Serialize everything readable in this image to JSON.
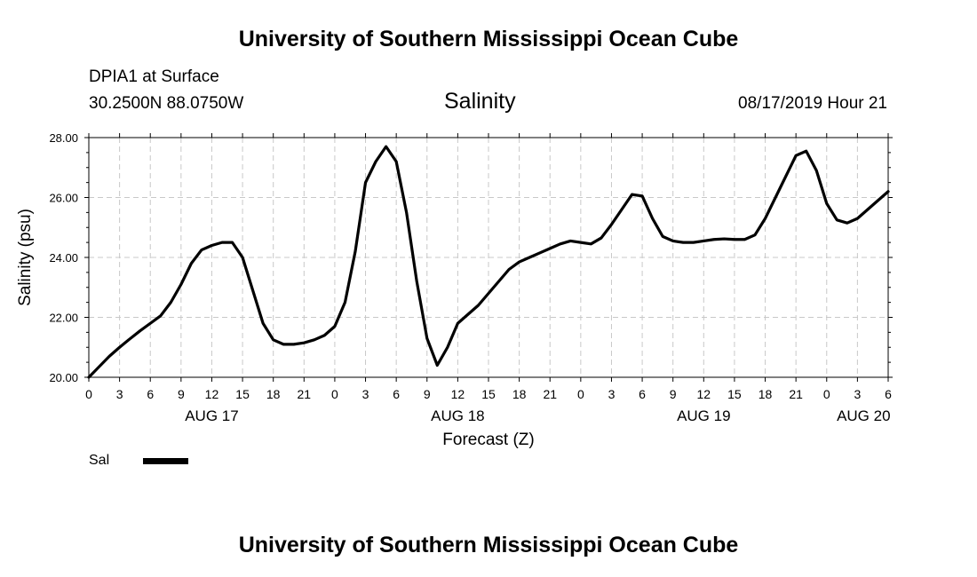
{
  "header": {
    "title": "University of Southern Mississippi Ocean Cube",
    "station_name": "DPIA1 at Surface",
    "station_coords": "30.2500N 88.0750W",
    "chart_title": "Salinity",
    "run_time": "08/17/2019 Hour 21"
  },
  "footer": {
    "title": "University of Southern Mississippi Ocean Cube"
  },
  "legend": {
    "label": "Sal"
  },
  "colors": {
    "line": "#000000",
    "grid": "#c8c8c8",
    "background": "#ffffff"
  },
  "chart_data": {
    "type": "line",
    "title": "Salinity",
    "xlabel": "Forecast (Z)",
    "ylabel": "Salinity (psu)",
    "x_unit": "hours since AUG 17 00Z",
    "xlim": [
      0,
      78
    ],
    "ylim": [
      20,
      28
    ],
    "grid": true,
    "x_ticks": [
      0,
      3,
      6,
      9,
      12,
      15,
      18,
      21,
      24,
      27,
      30,
      33,
      36,
      39,
      42,
      45,
      48,
      51,
      54,
      57,
      60,
      63,
      66,
      69,
      72,
      75,
      78
    ],
    "x_tick_labels": [
      "0",
      "3",
      "6",
      "9",
      "12",
      "15",
      "18",
      "21",
      "0",
      "3",
      "6",
      "9",
      "12",
      "15",
      "18",
      "21",
      "0",
      "3",
      "6",
      "9",
      "12",
      "15",
      "18",
      "21",
      "0",
      "3",
      "6"
    ],
    "y_ticks": [
      20,
      22,
      24,
      26,
      28
    ],
    "y_tick_labels": [
      "20.00",
      "22.00",
      "24.00",
      "26.00",
      "28.00"
    ],
    "day_labels": [
      {
        "label": "AUG 17",
        "x": 12
      },
      {
        "label": "AUG 18",
        "x": 36
      },
      {
        "label": "AUG 19",
        "x": 60
      },
      {
        "label": "AUG 20",
        "x": 75.6
      }
    ],
    "series": [
      {
        "name": "Sal",
        "x": [
          0,
          1,
          2,
          3,
          4,
          5,
          6,
          7,
          8,
          9,
          10,
          11,
          12,
          13,
          14,
          15,
          16,
          17,
          18,
          19,
          20,
          21,
          22,
          23,
          24,
          25,
          26,
          27,
          28,
          29,
          30,
          31,
          32,
          33,
          34,
          35,
          36,
          37,
          38,
          39,
          40,
          41,
          42,
          43,
          44,
          45,
          46,
          47,
          48,
          49,
          50,
          51,
          52,
          53,
          54,
          55,
          56,
          57,
          58,
          59,
          60,
          61,
          62,
          63,
          64,
          65,
          66,
          67,
          68,
          69,
          70,
          71,
          72,
          73,
          74,
          75,
          76,
          77,
          78
        ],
        "values": [
          20.0,
          20.35,
          20.7,
          21.0,
          21.28,
          21.55,
          21.8,
          22.05,
          22.5,
          23.1,
          23.8,
          24.25,
          24.4,
          24.5,
          24.5,
          24.0,
          22.9,
          21.8,
          21.25,
          21.1,
          21.1,
          21.15,
          21.25,
          21.4,
          21.7,
          22.5,
          24.2,
          26.5,
          27.2,
          27.7,
          27.2,
          25.5,
          23.2,
          21.3,
          20.4,
          21.0,
          21.8,
          22.1,
          22.4,
          22.8,
          23.2,
          23.6,
          23.85,
          24.0,
          24.15,
          24.3,
          24.45,
          24.55,
          24.5,
          24.45,
          24.65,
          25.1,
          25.6,
          26.1,
          26.05,
          25.3,
          24.7,
          24.55,
          24.5,
          24.5,
          24.55,
          24.6,
          24.62,
          24.6,
          24.6,
          24.75,
          25.3,
          26.0,
          26.7,
          27.4,
          27.55,
          26.9,
          25.8,
          25.25,
          25.15,
          25.3,
          25.6,
          25.9,
          26.2
        ]
      }
    ]
  }
}
